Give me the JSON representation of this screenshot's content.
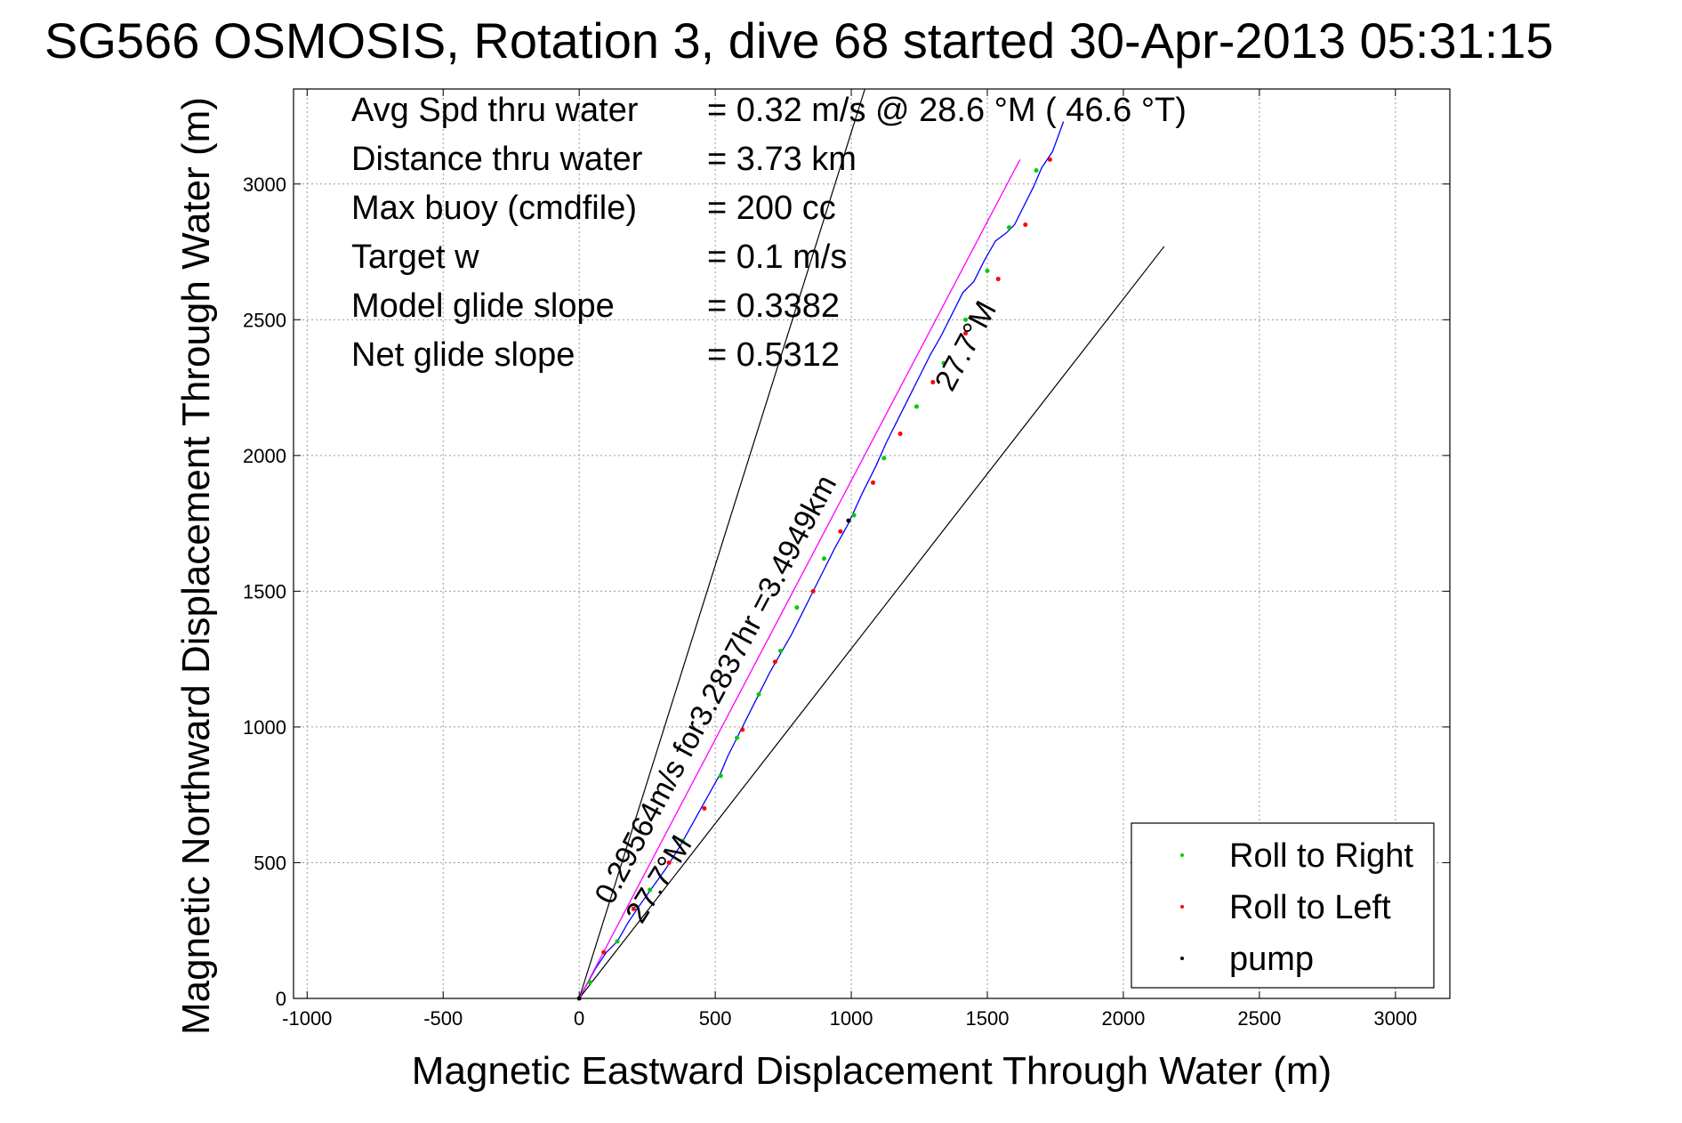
{
  "chart_data": {
    "type": "line",
    "title": "SG566 OSMOSIS, Rotation 3, dive 68 started 30-Apr-2013 05:31:15",
    "xlabel": "Magnetic Eastward Displacement Through Water (m)",
    "ylabel": "Magnetic Northward Displacement Through Water (m)",
    "xlim": [
      -1050,
      3200
    ],
    "ylim": [
      0,
      3350
    ],
    "xticks": [
      -1000,
      -500,
      0,
      500,
      1000,
      1500,
      2000,
      2500,
      3000
    ],
    "yticks": [
      0,
      500,
      1000,
      1500,
      2000,
      2500,
      3000
    ],
    "grid": true,
    "legend_position": "bottom-right",
    "info_lines": [
      {
        "label": "Avg Spd thru water",
        "value": "=  0.32 m/s @  28.6 °M ( 46.6 °T)"
      },
      {
        "label": "Distance thru water",
        "value": "=  3.73 km"
      },
      {
        "label": "Max buoy (cmdfile)",
        "value": "= 200 cc"
      },
      {
        "label": "Target w",
        "value": "= 0.1 m/s"
      },
      {
        "label": "Model glide slope",
        "value": "= 0.3382"
      },
      {
        "label": "Net glide slope",
        "value": "= 0.5312"
      }
    ],
    "annotations": [
      {
        "text": "0.29564m/s for3.2837hr =3.4949km",
        "x": 120,
        "y": 340,
        "angle": 62
      },
      {
        "text": "27.7°M",
        "x": 230,
        "y": 270,
        "angle": 58
      },
      {
        "text": "27.7°M",
        "x": 1370,
        "y": 2230,
        "angle": 62
      }
    ],
    "reference_lines": [
      {
        "name": "heading-limit-left",
        "x": [
          0,
          1050
        ],
        "y": [
          0,
          3350
        ],
        "color": "#000000"
      },
      {
        "name": "heading-limit-right",
        "x": [
          0,
          2150
        ],
        "y": [
          0,
          2770
        ],
        "color": "#000000"
      }
    ],
    "series": [
      {
        "name": "track",
        "color": "#0000ff",
        "x": [
          0,
          60,
          100,
          140,
          180,
          220,
          270,
          320,
          370,
          420,
          470,
          520,
          545,
          580,
          620,
          660,
          700,
          740,
          780,
          820,
          860,
          900,
          940,
          990,
          1040,
          1090,
          1130,
          1170,
          1210,
          1250,
          1290,
          1330,
          1370,
          1410,
          1450,
          1490,
          1530,
          1570,
          1600,
          1640,
          1670,
          1700,
          1740,
          1780
        ],
        "y": [
          0,
          110,
          170,
          210,
          280,
          340,
          410,
          480,
          560,
          650,
          740,
          830,
          890,
          960,
          1040,
          1120,
          1200,
          1270,
          1340,
          1420,
          1500,
          1580,
          1660,
          1750,
          1860,
          1960,
          2050,
          2130,
          2210,
          2290,
          2370,
          2440,
          2520,
          2600,
          2640,
          2720,
          2790,
          2820,
          2850,
          2930,
          2990,
          3060,
          3120,
          3230
        ]
      },
      {
        "name": "net-heading",
        "color": "#ff00ff",
        "x": [
          0,
          1620
        ],
        "y": [
          0,
          3090
        ]
      }
    ],
    "legend": [
      "Roll to Right",
      "Roll to Left",
      "pump"
    ],
    "markers": {
      "roll_right": {
        "color": "#00cc00",
        "x": [
          40,
          140,
          260,
          380,
          520,
          580,
          660,
          740,
          800,
          900,
          1010,
          1120,
          1240,
          1340,
          1420,
          1500,
          1580,
          1680
        ],
        "y": [
          60,
          210,
          400,
          580,
          820,
          960,
          1120,
          1280,
          1440,
          1620,
          1780,
          1990,
          2180,
          2340,
          2500,
          2680,
          2840,
          3050
        ]
      },
      "roll_left": {
        "color": "#ff0000",
        "x": [
          90,
          200,
          330,
          460,
          600,
          720,
          860,
          960,
          1080,
          1180,
          1300,
          1420,
          1540,
          1640,
          1730
        ],
        "y": [
          170,
          330,
          500,
          700,
          990,
          1240,
          1500,
          1720,
          1900,
          2080,
          2270,
          2450,
          2650,
          2850,
          3090
        ]
      },
      "pump": {
        "color": "#000000",
        "x": [
          0,
          990
        ],
        "y": [
          0,
          1760
        ]
      }
    }
  }
}
